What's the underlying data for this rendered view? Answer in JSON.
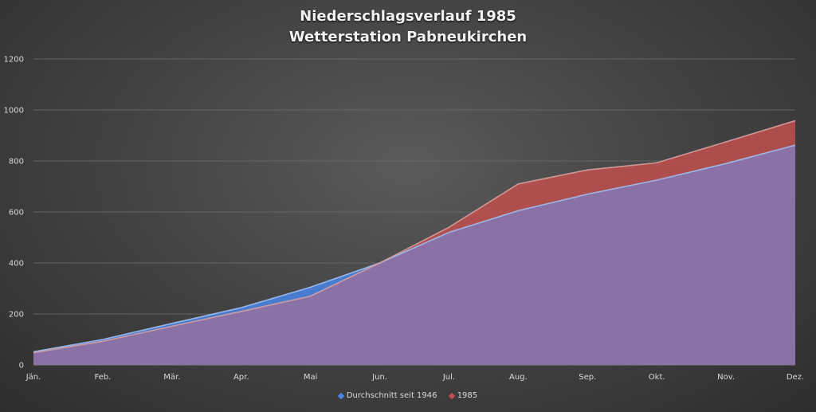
{
  "chart_data": {
    "type": "area",
    "title": [
      "Niederschlagsverlauf 1985",
      "Wetterstation Pabneukirchen"
    ],
    "categories": [
      "Jän.",
      "Feb.",
      "Mär.",
      "Apr.",
      "Mai",
      "Jun.",
      "Jul.",
      "Aug.",
      "Sep.",
      "Okt.",
      "Nov.",
      "Dez."
    ],
    "series": [
      {
        "name": "Durchschnitt seit 1946",
        "values": [
          52,
          100,
          163,
          225,
          305,
          400,
          520,
          605,
          670,
          725,
          790,
          862
        ],
        "color": "#4a86e8"
      },
      {
        "name": "1985",
        "values": [
          48,
          93,
          152,
          210,
          270,
          400,
          540,
          710,
          765,
          793,
          875,
          958
        ],
        "color": "#c0504d"
      }
    ],
    "overlap_color": "#8a72a6",
    "ylim": [
      0,
      1200
    ],
    "yticks": [
      0,
      200,
      400,
      600,
      800,
      1000,
      1200
    ],
    "grid": true,
    "legend_position": "bottom"
  }
}
